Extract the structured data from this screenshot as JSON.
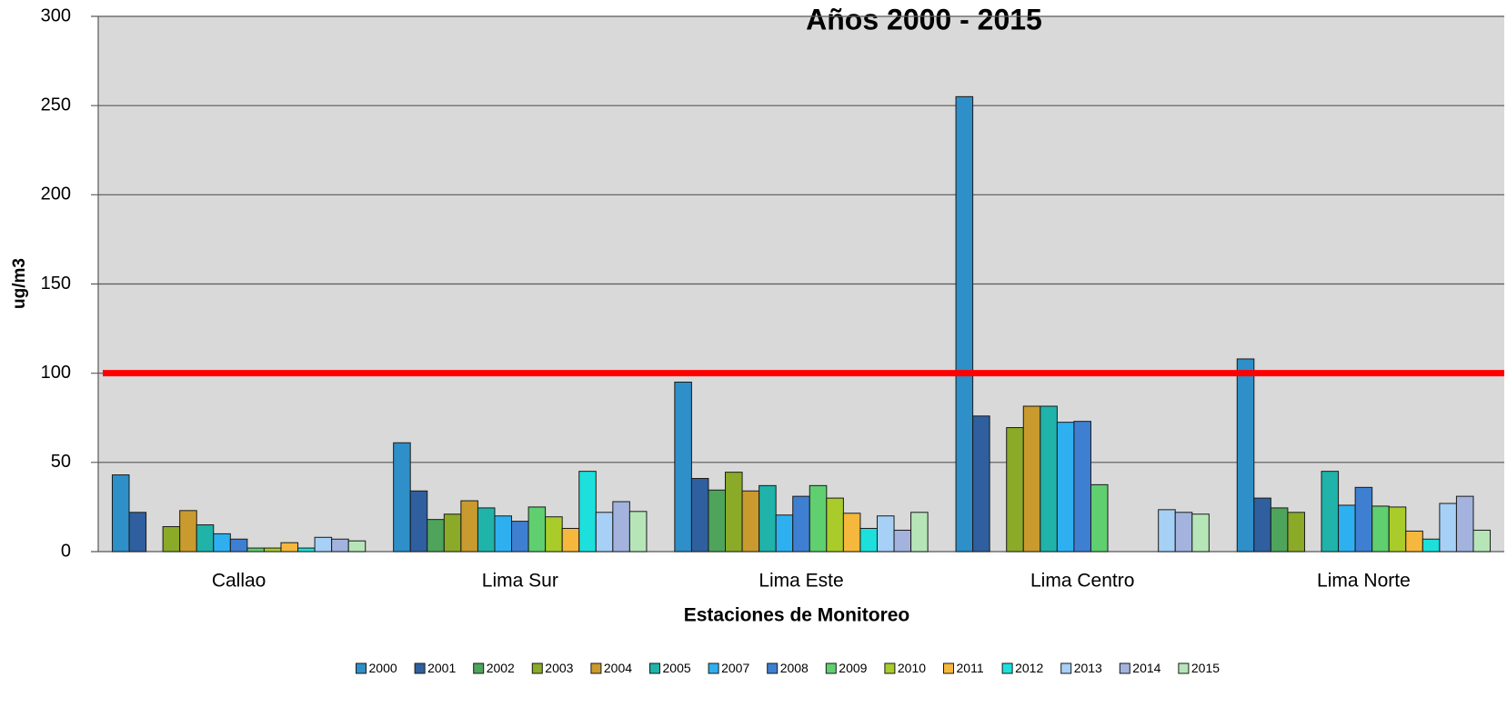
{
  "chart_data": {
    "type": "bar",
    "title": "Años 2000 - 2015",
    "x_label": "Estaciones de Monitoreo",
    "y_label": "ug/m3",
    "categories": [
      "Callao",
      "Lima Sur",
      "Lima Este",
      "Lima Centro",
      "Lima Norte"
    ],
    "series": [
      {
        "name": "2000",
        "color": "#2e8fc9",
        "values": [
          43,
          61,
          95,
          255,
          108
        ]
      },
      {
        "name": "2001",
        "color": "#2f5f9e",
        "values": [
          22,
          34,
          41,
          76,
          30
        ]
      },
      {
        "name": "2002",
        "color": "#4ea45b",
        "values": [
          null,
          18,
          34.5,
          null,
          24.5
        ]
      },
      {
        "name": "2003",
        "color": "#8aaa28",
        "values": [
          14,
          21,
          44.5,
          69.5,
          22
        ]
      },
      {
        "name": "2004",
        "color": "#c99a2e",
        "values": [
          23,
          28.5,
          34,
          81.5,
          null
        ]
      },
      {
        "name": "2005",
        "color": "#1fb3aa",
        "values": [
          15,
          24.5,
          37,
          81.5,
          45
        ]
      },
      {
        "name": "2007",
        "color": "#2eb0f0",
        "values": [
          10,
          20,
          20.5,
          72.5,
          26
        ]
      },
      {
        "name": "2008",
        "color": "#3f7fd1",
        "values": [
          7,
          17,
          31,
          73,
          36
        ]
      },
      {
        "name": "2009",
        "color": "#5fcf6f",
        "values": [
          2,
          25,
          37,
          37.5,
          25.5
        ]
      },
      {
        "name": "2010",
        "color": "#a9cc2a",
        "values": [
          2,
          19.5,
          30,
          null,
          25
        ]
      },
      {
        "name": "2011",
        "color": "#f5b83c",
        "values": [
          5,
          13,
          21.5,
          null,
          11.5
        ]
      },
      {
        "name": "2012",
        "color": "#1de0dc",
        "values": [
          2,
          45,
          13,
          null,
          7
        ]
      },
      {
        "name": "2013",
        "color": "#a6d0f5",
        "values": [
          8,
          22,
          20,
          23.5,
          27
        ]
      },
      {
        "name": "2014",
        "color": "#a3b3de",
        "values": [
          7,
          28,
          12,
          22,
          31
        ]
      },
      {
        "name": "2015",
        "color": "#b6e6b8",
        "values": [
          6,
          22.5,
          22,
          21,
          12
        ]
      }
    ],
    "threshold": 100,
    "threshold_color": "#ff0000",
    "ylim": [
      0,
      300
    ],
    "yticks": [
      0,
      50,
      100,
      150,
      200,
      250,
      300
    ],
    "grid": true,
    "legend": "bottom"
  }
}
